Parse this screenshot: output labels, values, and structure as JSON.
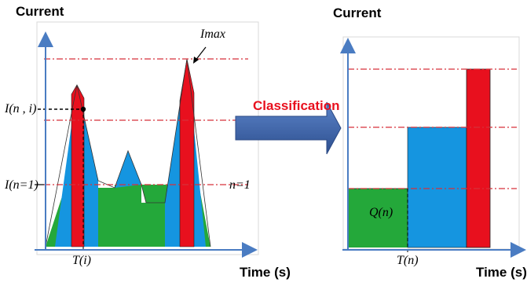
{
  "left_panel": {
    "y_axis_label": "Current",
    "x_axis_label": "Time (s)",
    "imax_label": "Imax",
    "i_ni_label": "I(n , i)",
    "i_n1_label": "I(n=1)",
    "n1_label": "n=1",
    "ti_label": "T(i)"
  },
  "right_panel": {
    "y_axis_label": "Current",
    "x_axis_label": "Time (s)",
    "qn_label": "Q(n)",
    "tn_label": "T(n)"
  },
  "arrow_label": "Classification",
  "colors": {
    "red": "#e8101e",
    "blue": "#1595e0",
    "green": "#24a83a",
    "axis": "#4a7cc2",
    "dashdot": "#d6303a",
    "arrow_fill": "#3f6ab3"
  }
}
